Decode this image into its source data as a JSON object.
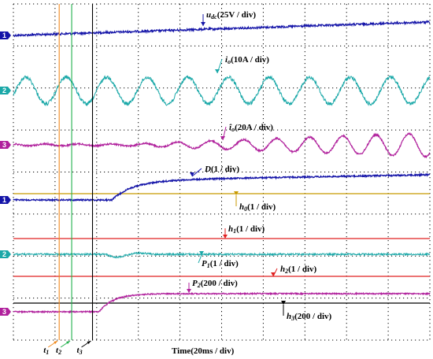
{
  "chart_data": {
    "type": "line",
    "xlabel": "Time(20ms / div)",
    "grid": true,
    "colors": {
      "blue": "#1414a8",
      "cyan": "#1aa8a8",
      "magenta": "#b0209c",
      "orange": "#f08a1e",
      "green": "#22b14c",
      "black": "#000000",
      "gold": "#c89a00",
      "red": "#e02020"
    },
    "channel_markers": [
      "1",
      "2",
      "3",
      "1",
      "2",
      "3"
    ],
    "time_markers": [
      {
        "name": "t1",
        "label": "t",
        "sub": "1",
        "x_div": 1.1
      },
      {
        "name": "t2",
        "label": "t",
        "sub": "2",
        "x_div": 1.4
      },
      {
        "name": "t3",
        "label": "t",
        "sub": "3",
        "x_div": 1.9
      }
    ],
    "series": [
      {
        "sym": "u",
        "sub": "dc",
        "unit": "(25V / div)"
      },
      {
        "sym": "i",
        "sub": "o",
        "unit": "(10A / div)"
      },
      {
        "sym": "î",
        "sub": "o",
        "unit": "(20A / div)"
      },
      {
        "sym": "D",
        "sub": "",
        "unit": "(1 / div)"
      },
      {
        "sym": "P",
        "sub": "1",
        "unit": "(1 / div)"
      },
      {
        "sym": "P",
        "sub": "2",
        "unit": "(200 / div)"
      }
    ],
    "thresholds": [
      {
        "sym": "h",
        "sub": "0",
        "unit": "(1 / div)"
      },
      {
        "sym": "h",
        "sub": "1",
        "unit": "(1 / div)"
      },
      {
        "sym": "h",
        "sub": "2",
        "unit": "(1 / div)"
      },
      {
        "sym": "h",
        "sub": "3",
        "unit": "(200 / div)"
      }
    ]
  }
}
